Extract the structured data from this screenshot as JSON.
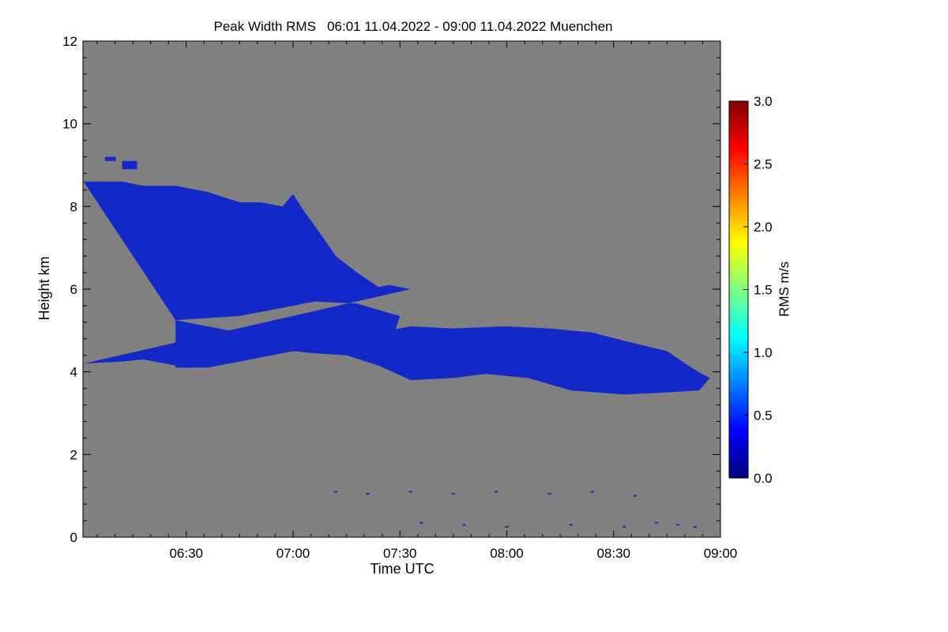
{
  "chart_data": {
    "type": "heatmap",
    "title": "Peak Width RMS   06:01 11.04.2022 - 09:00 11.04.2022 Muenchen",
    "xlabel": "Time UTC",
    "ylabel": "Height km",
    "x_range_hours": [
      6.0167,
      9.0
    ],
    "y_range_km": [
      0,
      12
    ],
    "x_ticks": [
      {
        "label": "06:30",
        "value": 6.5
      },
      {
        "label": "07:00",
        "value": 7.0
      },
      {
        "label": "07:30",
        "value": 7.5
      },
      {
        "label": "08:00",
        "value": 8.0
      },
      {
        "label": "08:30",
        "value": 8.5
      },
      {
        "label": "09:00",
        "value": 9.0
      }
    ],
    "y_ticks": [
      {
        "label": "0",
        "value": 0
      },
      {
        "label": "2",
        "value": 2
      },
      {
        "label": "4",
        "value": 4
      },
      {
        "label": "6",
        "value": 6
      },
      {
        "label": "8",
        "value": 8
      },
      {
        "label": "10",
        "value": 10
      },
      {
        "label": "12",
        "value": 12
      }
    ],
    "colorbar": {
      "label": "RMS m/s",
      "range": [
        0.0,
        3.0
      ],
      "ticks": [
        {
          "label": "0.0",
          "value": 0.0
        },
        {
          "label": "0.5",
          "value": 0.5
        },
        {
          "label": "1.0",
          "value": 1.0
        },
        {
          "label": "1.5",
          "value": 1.5
        },
        {
          "label": "2.0",
          "value": 2.0
        },
        {
          "label": "2.5",
          "value": 2.5
        },
        {
          "label": "3.0",
          "value": 3.0
        }
      ],
      "colors": [
        "#00007f",
        "#0000ff",
        "#0080ff",
        "#00ffff",
        "#80ff80",
        "#ffff00",
        "#ff8000",
        "#ff0000",
        "#800000"
      ]
    },
    "background_color": "#808080",
    "echo_color": "#1428c8",
    "upper_cloud": {
      "top_km": [
        [
          6.02,
          8.6
        ],
        [
          6.2,
          8.6
        ],
        [
          6.3,
          8.5
        ],
        [
          6.45,
          8.5
        ],
        [
          6.6,
          8.35
        ],
        [
          6.75,
          8.1
        ],
        [
          6.85,
          8.1
        ],
        [
          6.95,
          8.0
        ],
        [
          7.0,
          8.3
        ],
        [
          7.05,
          7.9
        ],
        [
          7.12,
          7.4
        ],
        [
          7.2,
          6.8
        ],
        [
          7.3,
          6.4
        ],
        [
          7.4,
          6.05
        ],
        [
          7.45,
          6.1
        ],
        [
          7.55,
          6.0
        ]
      ],
      "bottom_km": [
        [
          6.02,
          4.2
        ],
        [
          6.2,
          4.25
        ],
        [
          6.3,
          4.3
        ],
        [
          6.5,
          4.1
        ],
        [
          6.75,
          4.35
        ],
        [
          6.95,
          4.45
        ],
        [
          7.1,
          4.6
        ],
        [
          7.2,
          4.6
        ],
        [
          7.3,
          4.5
        ],
        [
          7.45,
          4.55
        ],
        [
          7.5,
          5.35
        ],
        [
          7.4,
          5.5
        ],
        [
          7.3,
          5.65
        ],
        [
          7.1,
          5.7
        ],
        [
          6.95,
          5.55
        ],
        [
          6.75,
          5.35
        ],
        [
          6.6,
          5.3
        ],
        [
          6.45,
          5.25
        ]
      ]
    },
    "lower_cloud": {
      "top_km": [
        [
          6.45,
          5.25
        ],
        [
          6.6,
          5.1
        ],
        [
          6.75,
          4.95
        ],
        [
          6.9,
          4.75
        ],
        [
          6.95,
          4.95
        ],
        [
          7.05,
          5.0
        ],
        [
          7.15,
          4.85
        ],
        [
          7.2,
          5.15
        ],
        [
          7.3,
          5.1
        ],
        [
          7.45,
          5.0
        ],
        [
          7.55,
          5.1
        ],
        [
          7.75,
          5.05
        ],
        [
          8.0,
          5.1
        ],
        [
          8.2,
          5.05
        ],
        [
          8.4,
          4.95
        ],
        [
          8.55,
          4.75
        ],
        [
          8.75,
          4.5
        ],
        [
          8.88,
          4.05
        ],
        [
          8.95,
          3.85
        ]
      ],
      "bottom_km": [
        [
          8.95,
          3.85
        ],
        [
          8.9,
          3.55
        ],
        [
          8.75,
          3.5
        ],
        [
          8.55,
          3.45
        ],
        [
          8.3,
          3.55
        ],
        [
          8.1,
          3.85
        ],
        [
          7.9,
          3.95
        ],
        [
          7.75,
          3.85
        ],
        [
          7.55,
          3.8
        ],
        [
          7.4,
          4.15
        ],
        [
          7.25,
          4.4
        ],
        [
          7.1,
          4.45
        ],
        [
          7.0,
          4.5
        ],
        [
          6.9,
          4.4
        ],
        [
          6.8,
          4.3
        ],
        [
          6.6,
          4.1
        ],
        [
          6.45,
          4.1
        ]
      ]
    },
    "small_patches_km": [
      {
        "x": [
          6.12,
          6.17
        ],
        "y": [
          9.1,
          9.2
        ]
      },
      {
        "x": [
          6.2,
          6.27
        ],
        "y": [
          8.9,
          9.1
        ]
      }
    ],
    "noise_near_ground_km": [
      {
        "x": 7.2,
        "y": 1.1
      },
      {
        "x": 7.35,
        "y": 1.05
      },
      {
        "x": 7.55,
        "y": 1.1
      },
      {
        "x": 7.75,
        "y": 1.05
      },
      {
        "x": 7.95,
        "y": 1.1
      },
      {
        "x": 8.2,
        "y": 1.05
      },
      {
        "x": 8.4,
        "y": 1.1
      },
      {
        "x": 8.6,
        "y": 1.0
      },
      {
        "x": 7.6,
        "y": 0.35
      },
      {
        "x": 7.8,
        "y": 0.3
      },
      {
        "x": 8.0,
        "y": 0.25
      },
      {
        "x": 8.3,
        "y": 0.3
      },
      {
        "x": 8.55,
        "y": 0.25
      },
      {
        "x": 8.7,
        "y": 0.35
      },
      {
        "x": 8.8,
        "y": 0.3
      },
      {
        "x": 8.88,
        "y": 0.25
      }
    ]
  }
}
